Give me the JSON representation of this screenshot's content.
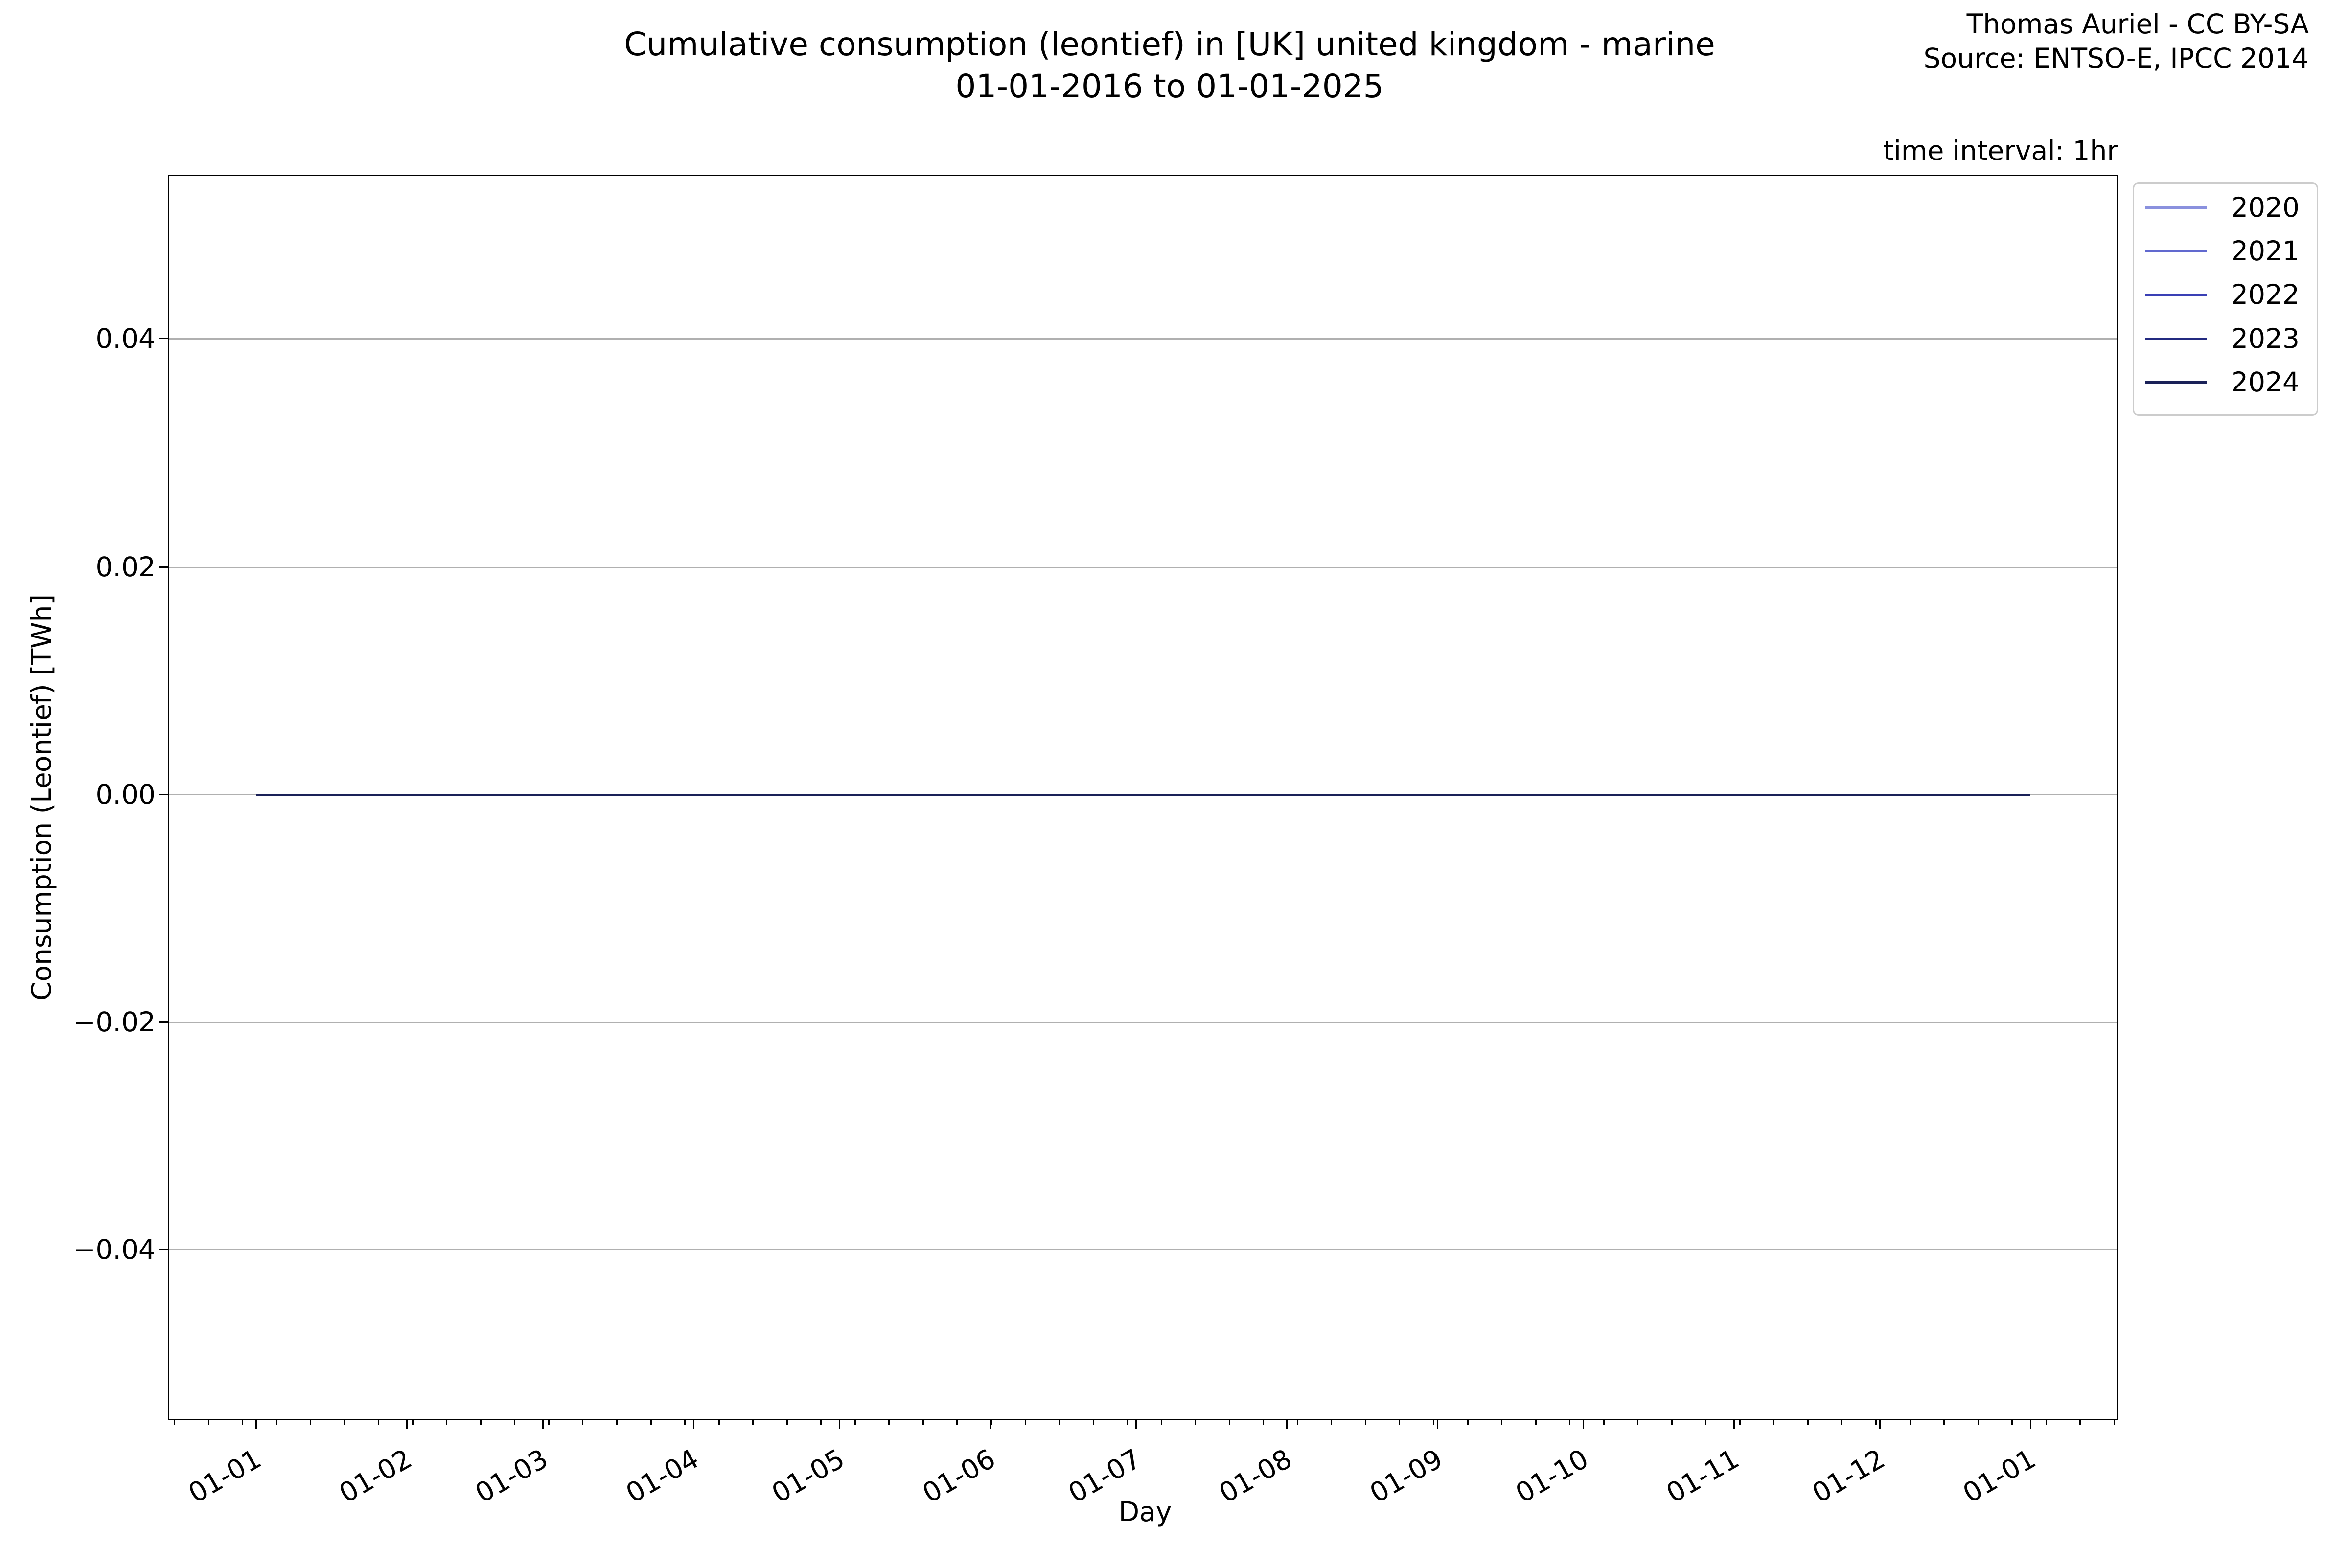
{
  "header": {
    "attribution_line1": "Thomas Auriel - CC BY-SA",
    "attribution_line2": "Source: ENTSO-E, IPCC 2014",
    "time_interval_note": "time interval: 1hr"
  },
  "chart_data": {
    "type": "line",
    "title": "Cumulative consumption (leontief) in [UK] united kingdom - marine",
    "subtitle": "01-01-2016 to 01-01-2025",
    "xlabel": "Day",
    "ylabel": "Consumption (Leontief) [TWh]",
    "x_tick_labels": [
      "01-01",
      "01-02",
      "01-03",
      "01-04",
      "01-05",
      "01-06",
      "01-07",
      "01-08",
      "01-09",
      "01-10",
      "01-11",
      "01-12",
      "01-01"
    ],
    "y_tick_labels": [
      "0.04",
      "0.02",
      "0.00",
      "−0.02",
      "−0.04"
    ],
    "y_tick_values": [
      0.04,
      0.02,
      0.0,
      -0.02,
      -0.04
    ],
    "ylim": [
      -0.055,
      0.055
    ],
    "x_range": [
      "01-01",
      "01-01"
    ],
    "grid": true,
    "legend_position": "upper right outside axes",
    "grid_color": "#b0b0b0",
    "series": [
      {
        "name": "2020",
        "color": "#8a91de",
        "x": [
          "01-01",
          "12-31"
        ],
        "values": [
          0.0,
          0.0
        ],
        "constant_value": 0.0
      },
      {
        "name": "2021",
        "color": "#6169cf",
        "x": [
          "01-01",
          "12-31"
        ],
        "values": [
          0.0,
          0.0
        ],
        "constant_value": 0.0
      },
      {
        "name": "2022",
        "color": "#3a40b5",
        "x": [
          "01-01",
          "12-31"
        ],
        "values": [
          0.0,
          0.0
        ],
        "constant_value": 0.0
      },
      {
        "name": "2023",
        "color": "#232a80",
        "x": [
          "01-01",
          "12-31"
        ],
        "values": [
          0.0,
          0.0
        ],
        "constant_value": 0.0
      },
      {
        "name": "2024",
        "color": "#1a2158",
        "x": [
          "01-01",
          "12-31"
        ],
        "values": [
          0.0,
          0.0
        ],
        "constant_value": 0.0
      }
    ],
    "values_note": "All plotted series are flat at 0.00 TWh for the whole year (hourly data); they overlap on the 0.00 gridline."
  }
}
